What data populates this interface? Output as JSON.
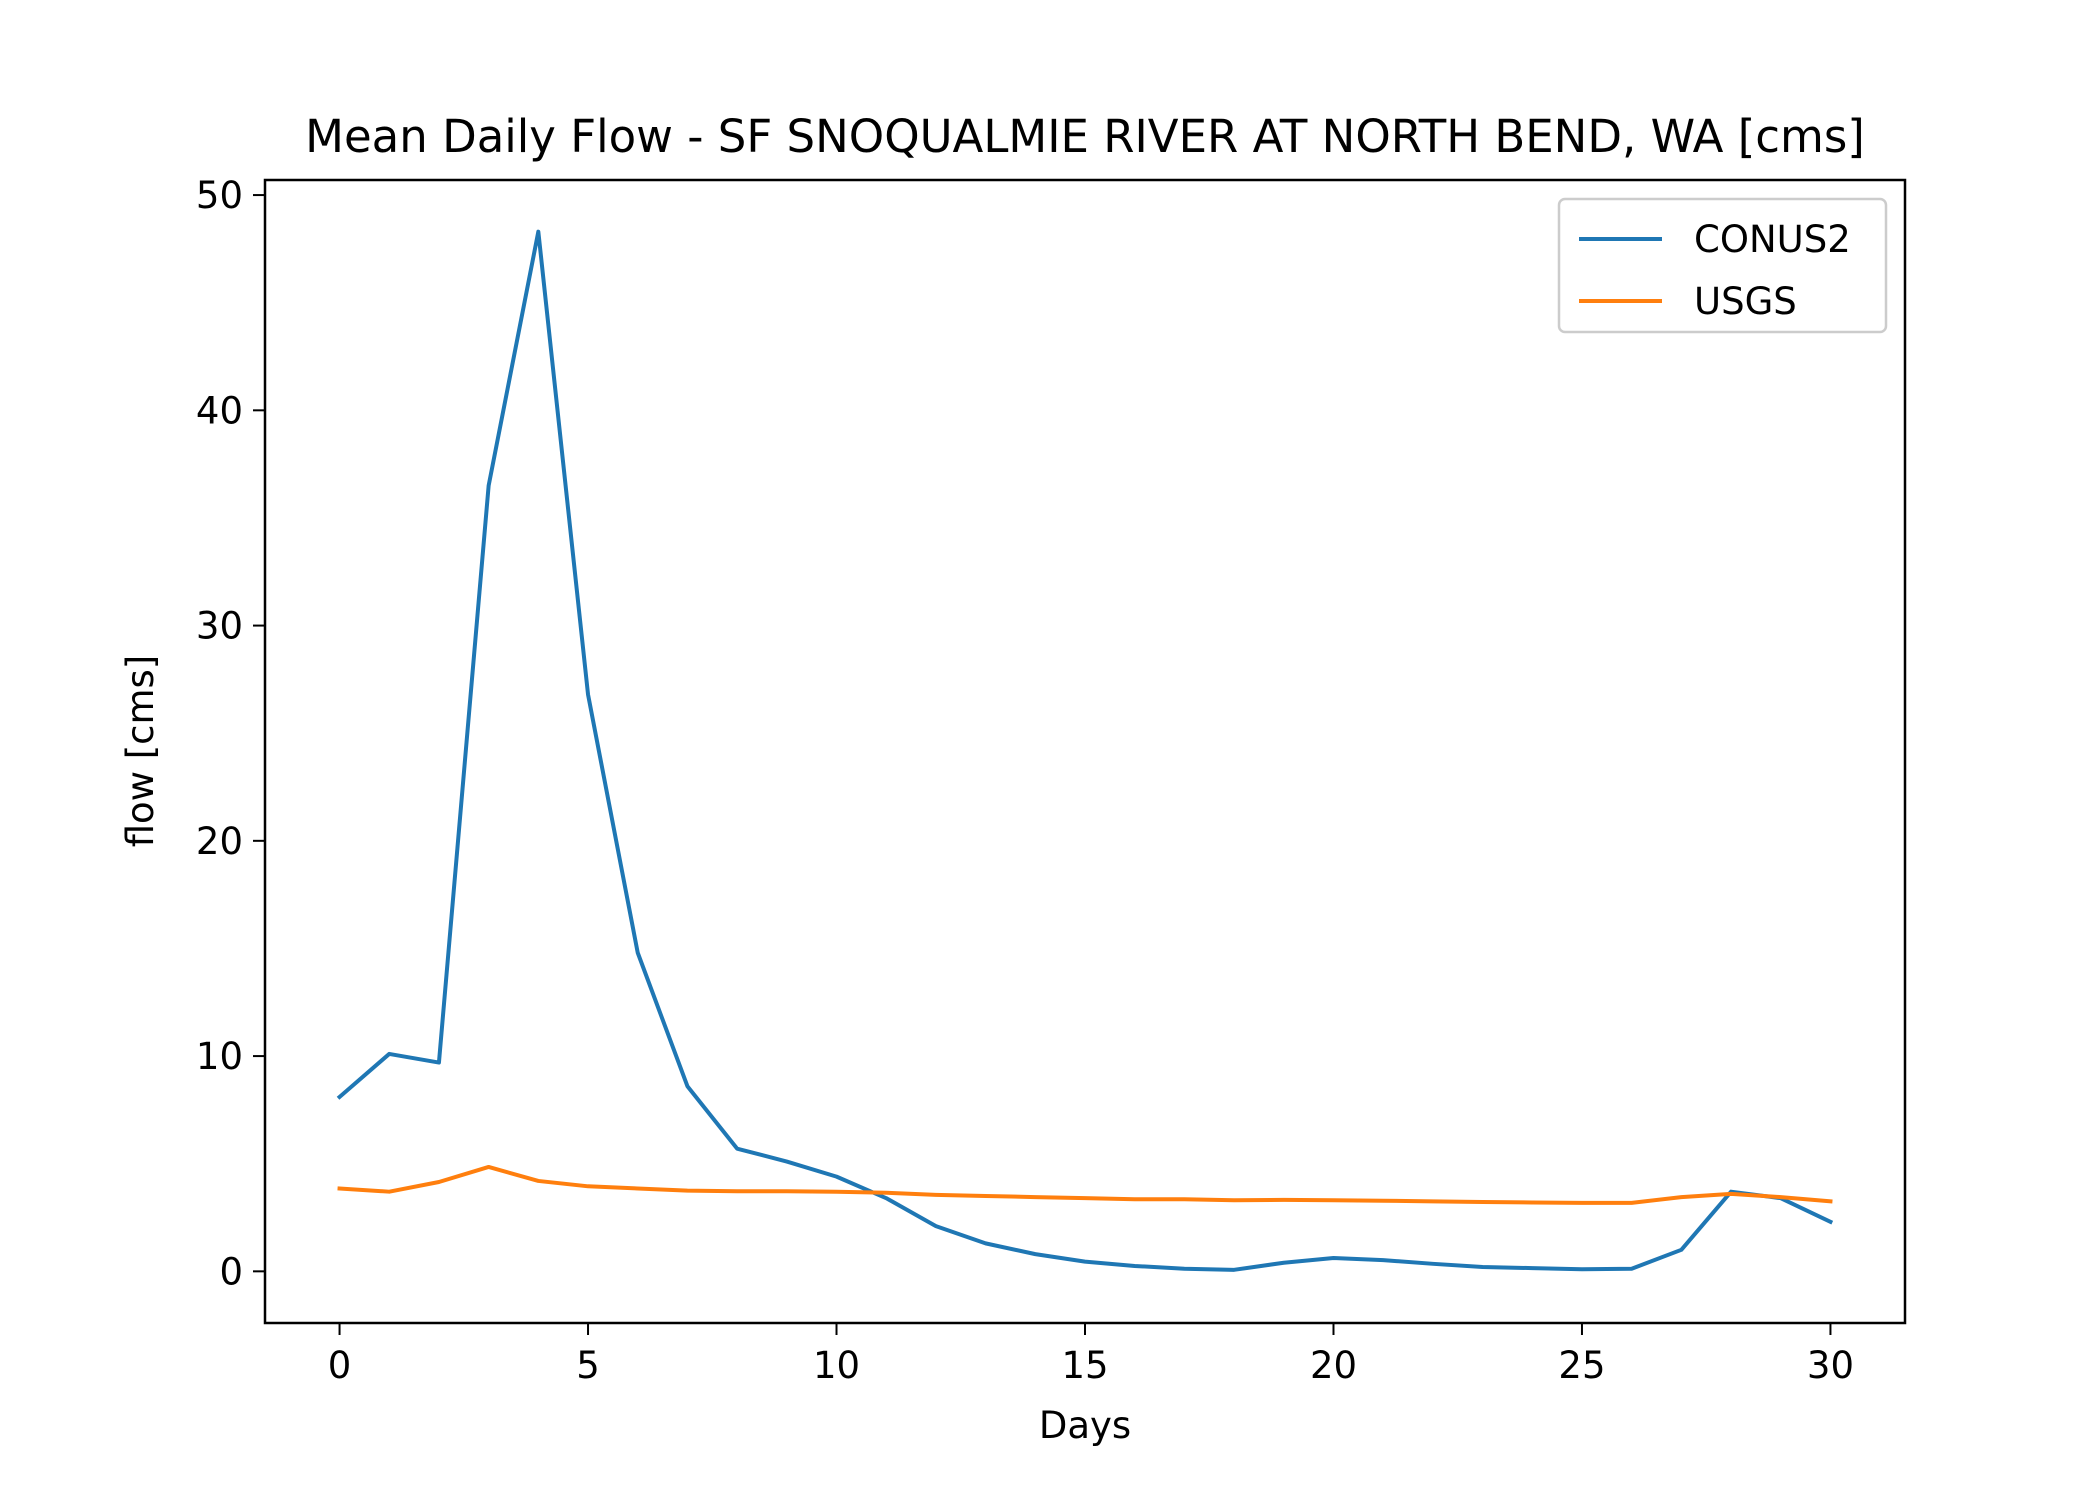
{
  "chart_data": {
    "type": "line",
    "title": "Mean Daily Flow - SF SNOQUALMIE RIVER AT NORTH BEND, WA [cms]",
    "xlabel": "Days",
    "ylabel": "flow [cms]",
    "xlim": [
      -1.5,
      31.5
    ],
    "ylim": [
      -2.4,
      50.7
    ],
    "xticks": [
      0,
      5,
      10,
      15,
      20,
      25,
      30
    ],
    "yticks": [
      0,
      10,
      20,
      30,
      40,
      50
    ],
    "grid": false,
    "legend_position": "top-right",
    "x": [
      0,
      1,
      2,
      3,
      4,
      5,
      6,
      7,
      8,
      9,
      10,
      11,
      12,
      13,
      14,
      15,
      16,
      17,
      18,
      19,
      20,
      21,
      22,
      23,
      24,
      25,
      26,
      27,
      28,
      29,
      30
    ],
    "series": [
      {
        "name": "CONUS2",
        "color": "#1f77b4",
        "values": [
          8.1,
          10.1,
          9.7,
          36.5,
          48.3,
          26.8,
          14.8,
          8.6,
          5.7,
          5.1,
          4.4,
          3.4,
          2.1,
          1.3,
          0.8,
          0.45,
          0.25,
          0.12,
          0.07,
          0.4,
          0.62,
          0.52,
          0.35,
          0.2,
          0.15,
          0.1,
          0.12,
          1.0,
          3.7,
          3.4,
          2.3
        ]
      },
      {
        "name": "USGS",
        "color": "#ff7f0e",
        "values": [
          3.85,
          3.7,
          4.15,
          4.85,
          4.2,
          3.95,
          3.85,
          3.75,
          3.72,
          3.72,
          3.7,
          3.65,
          3.55,
          3.5,
          3.45,
          3.4,
          3.35,
          3.35,
          3.3,
          3.32,
          3.3,
          3.28,
          3.25,
          3.22,
          3.2,
          3.18,
          3.18,
          3.45,
          3.6,
          3.45,
          3.25
        ]
      }
    ]
  }
}
